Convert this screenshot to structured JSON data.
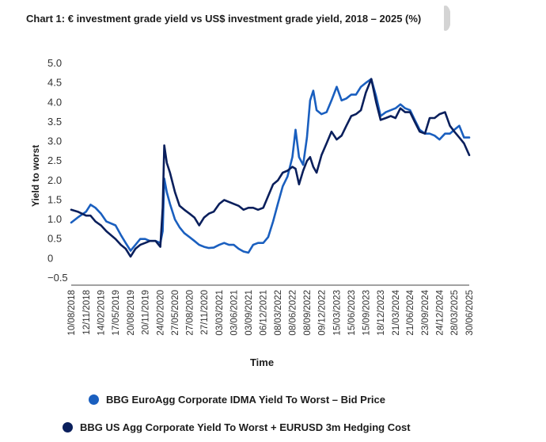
{
  "title": "Chart 1: € investment grade yield vs US$ investment grade yield, 2018 – 2025 (%)",
  "chart_data": {
    "type": "line",
    "title": "Chart 1: € investment grade yield vs US$ investment grade yield, 2018 – 2025 (%)",
    "xlabel": "Time",
    "ylabel": "Yield to worst",
    "ylim": [
      -0.5,
      5.0
    ],
    "yticks": [
      -0.5,
      0,
      0.5,
      1.0,
      1.5,
      2.0,
      2.5,
      3.0,
      3.5,
      4.0,
      4.5,
      5.0
    ],
    "ytick_labels": [
      "−0.5",
      "0",
      "0.5",
      "1.0",
      "1.5",
      "2.0",
      "2.5",
      "3.0",
      "3.5",
      "4.0",
      "4.5",
      "5.0"
    ],
    "xlim": [
      "2018-08-10",
      "2025-06-30"
    ],
    "xticks": [
      "2018-08-10",
      "2018-11-12",
      "2019-02-14",
      "2019-05-17",
      "2019-08-20",
      "2019-11-20",
      "2020-02-24",
      "2020-05-27",
      "2020-08-27",
      "2020-11-27",
      "2021-03-03",
      "2021-06-03",
      "2021-09-03",
      "2021-12-06",
      "2022-03-08",
      "2022-06-08",
      "2022-09-08",
      "2022-12-09",
      "2023-03-15",
      "2023-06-15",
      "2023-09-15",
      "2023-12-18",
      "2024-03-21",
      "2024-06-21",
      "2024-09-23",
      "2024-12-24",
      "2025-03-28",
      "2025-06-30"
    ],
    "xtick_labels": [
      "10/08/2018",
      "12/11/2018",
      "14/02/2019",
      "17/05/2019",
      "20/08/2019",
      "20/11/2019",
      "24/02/2020",
      "27/05/2020",
      "27/08/2020",
      "27/11/2020",
      "03/03/2021",
      "03/06/2021",
      "03/09/2021",
      "06/12/2021",
      "08/03/2022",
      "08/06/2022",
      "08/09/2022",
      "09/12/2022",
      "15/03/2023",
      "15/06/2023",
      "15/09/2023",
      "18/12/2023",
      "21/03/2024",
      "21/06/2024",
      "23/09/2024",
      "24/12/2024",
      "28/03/2025",
      "30/06/2025"
    ],
    "grid": false,
    "legend_position": "bottom",
    "series": [
      {
        "name": "BBG EuroAgg Corporate IDMA Yield To Worst – Bid Price",
        "color": "#1a5fbf",
        "points": [
          [
            "2018-08-10",
            0.92
          ],
          [
            "2018-09-20",
            1.05
          ],
          [
            "2018-11-12",
            1.2
          ],
          [
            "2018-12-10",
            1.38
          ],
          [
            "2019-01-10",
            1.3
          ],
          [
            "2019-02-14",
            1.15
          ],
          [
            "2019-03-20",
            0.95
          ],
          [
            "2019-05-17",
            0.85
          ],
          [
            "2019-06-20",
            0.6
          ],
          [
            "2019-07-20",
            0.4
          ],
          [
            "2019-08-20",
            0.2
          ],
          [
            "2019-09-20",
            0.35
          ],
          [
            "2019-10-20",
            0.5
          ],
          [
            "2019-11-20",
            0.5
          ],
          [
            "2019-12-20",
            0.45
          ],
          [
            "2020-01-25",
            0.45
          ],
          [
            "2020-02-24",
            0.4
          ],
          [
            "2020-03-10",
            0.7
          ],
          [
            "2020-03-20",
            2.05
          ],
          [
            "2020-04-05",
            1.7
          ],
          [
            "2020-04-25",
            1.4
          ],
          [
            "2020-05-27",
            1.0
          ],
          [
            "2020-06-25",
            0.8
          ],
          [
            "2020-07-25",
            0.65
          ],
          [
            "2020-08-27",
            0.55
          ],
          [
            "2020-09-27",
            0.45
          ],
          [
            "2020-10-27",
            0.35
          ],
          [
            "2020-11-27",
            0.3
          ],
          [
            "2020-12-27",
            0.27
          ],
          [
            "2021-01-27",
            0.28
          ],
          [
            "2021-03-03",
            0.35
          ],
          [
            "2021-04-03",
            0.4
          ],
          [
            "2021-05-03",
            0.35
          ],
          [
            "2021-06-03",
            0.35
          ],
          [
            "2021-07-03",
            0.25
          ],
          [
            "2021-08-03",
            0.18
          ],
          [
            "2021-09-03",
            0.15
          ],
          [
            "2021-10-03",
            0.35
          ],
          [
            "2021-11-03",
            0.4
          ],
          [
            "2021-12-06",
            0.4
          ],
          [
            "2022-01-06",
            0.55
          ],
          [
            "2022-02-06",
            0.95
          ],
          [
            "2022-03-08",
            1.4
          ],
          [
            "2022-04-08",
            1.85
          ],
          [
            "2022-05-08",
            2.1
          ],
          [
            "2022-06-08",
            2.6
          ],
          [
            "2022-06-28",
            3.3
          ],
          [
            "2022-07-20",
            2.6
          ],
          [
            "2022-08-15",
            2.4
          ],
          [
            "2022-09-08",
            3.1
          ],
          [
            "2022-09-28",
            4.05
          ],
          [
            "2022-10-18",
            4.3
          ],
          [
            "2022-11-08",
            3.8
          ],
          [
            "2022-12-09",
            3.7
          ],
          [
            "2023-01-10",
            3.75
          ],
          [
            "2023-02-10",
            4.05
          ],
          [
            "2023-03-15",
            4.4
          ],
          [
            "2023-04-15",
            4.05
          ],
          [
            "2023-05-15",
            4.1
          ],
          [
            "2023-06-15",
            4.2
          ],
          [
            "2023-07-15",
            4.2
          ],
          [
            "2023-08-15",
            4.4
          ],
          [
            "2023-09-15",
            4.5
          ],
          [
            "2023-10-20",
            4.6
          ],
          [
            "2023-11-20",
            4.15
          ],
          [
            "2023-12-18",
            3.65
          ],
          [
            "2024-01-20",
            3.75
          ],
          [
            "2024-02-20",
            3.8
          ],
          [
            "2024-03-21",
            3.85
          ],
          [
            "2024-04-21",
            3.95
          ],
          [
            "2024-05-21",
            3.85
          ],
          [
            "2024-06-21",
            3.8
          ],
          [
            "2024-07-21",
            3.55
          ],
          [
            "2024-08-21",
            3.3
          ],
          [
            "2024-09-23",
            3.2
          ],
          [
            "2024-10-23",
            3.2
          ],
          [
            "2024-11-23",
            3.15
          ],
          [
            "2024-12-24",
            3.05
          ],
          [
            "2025-01-28",
            3.2
          ],
          [
            "2025-02-28",
            3.2
          ],
          [
            "2025-03-28",
            3.3
          ],
          [
            "2025-04-28",
            3.4
          ],
          [
            "2025-05-28",
            3.1
          ],
          [
            "2025-06-30",
            3.1
          ]
        ]
      },
      {
        "name": "BBG US Agg Corporate Yield To Worst + EURUSD 3m Hedging Cost",
        "color": "#0a1f5c",
        "points": [
          [
            "2018-08-10",
            1.25
          ],
          [
            "2018-09-20",
            1.2
          ],
          [
            "2018-11-12",
            1.1
          ],
          [
            "2018-12-10",
            1.1
          ],
          [
            "2019-01-10",
            0.95
          ],
          [
            "2019-02-14",
            0.85
          ],
          [
            "2019-03-20",
            0.7
          ],
          [
            "2019-05-17",
            0.5
          ],
          [
            "2019-06-20",
            0.35
          ],
          [
            "2019-07-20",
            0.25
          ],
          [
            "2019-08-20",
            0.05
          ],
          [
            "2019-09-20",
            0.25
          ],
          [
            "2019-10-20",
            0.35
          ],
          [
            "2019-11-20",
            0.4
          ],
          [
            "2019-12-20",
            0.45
          ],
          [
            "2020-01-25",
            0.45
          ],
          [
            "2020-02-24",
            0.3
          ],
          [
            "2020-03-10",
            1.3
          ],
          [
            "2020-03-20",
            2.9
          ],
          [
            "2020-04-05",
            2.45
          ],
          [
            "2020-04-25",
            2.2
          ],
          [
            "2020-05-27",
            1.7
          ],
          [
            "2020-06-25",
            1.35
          ],
          [
            "2020-07-25",
            1.25
          ],
          [
            "2020-08-27",
            1.15
          ],
          [
            "2020-09-27",
            1.05
          ],
          [
            "2020-10-27",
            0.85
          ],
          [
            "2020-11-27",
            1.05
          ],
          [
            "2020-12-27",
            1.15
          ],
          [
            "2021-01-27",
            1.2
          ],
          [
            "2021-03-03",
            1.4
          ],
          [
            "2021-04-03",
            1.5
          ],
          [
            "2021-05-03",
            1.45
          ],
          [
            "2021-06-03",
            1.4
          ],
          [
            "2021-07-03",
            1.35
          ],
          [
            "2021-08-03",
            1.25
          ],
          [
            "2021-09-03",
            1.3
          ],
          [
            "2021-10-03",
            1.3
          ],
          [
            "2021-11-03",
            1.25
          ],
          [
            "2021-12-06",
            1.3
          ],
          [
            "2022-01-06",
            1.6
          ],
          [
            "2022-02-06",
            1.9
          ],
          [
            "2022-03-08",
            2.0
          ],
          [
            "2022-04-08",
            2.2
          ],
          [
            "2022-05-08",
            2.25
          ],
          [
            "2022-06-08",
            2.35
          ],
          [
            "2022-06-28",
            2.3
          ],
          [
            "2022-07-20",
            1.9
          ],
          [
            "2022-08-15",
            2.25
          ],
          [
            "2022-09-08",
            2.5
          ],
          [
            "2022-09-28",
            2.6
          ],
          [
            "2022-10-18",
            2.35
          ],
          [
            "2022-11-08",
            2.2
          ],
          [
            "2022-12-09",
            2.65
          ],
          [
            "2023-01-10",
            2.95
          ],
          [
            "2023-02-10",
            3.25
          ],
          [
            "2023-03-15",
            3.05
          ],
          [
            "2023-04-15",
            3.15
          ],
          [
            "2023-05-15",
            3.4
          ],
          [
            "2023-06-15",
            3.65
          ],
          [
            "2023-07-15",
            3.7
          ],
          [
            "2023-08-15",
            3.8
          ],
          [
            "2023-09-15",
            4.25
          ],
          [
            "2023-10-20",
            4.6
          ],
          [
            "2023-11-20",
            4.0
          ],
          [
            "2023-12-18",
            3.55
          ],
          [
            "2024-01-20",
            3.6
          ],
          [
            "2024-02-20",
            3.65
          ],
          [
            "2024-03-21",
            3.6
          ],
          [
            "2024-04-21",
            3.85
          ],
          [
            "2024-05-21",
            3.75
          ],
          [
            "2024-06-21",
            3.75
          ],
          [
            "2024-07-21",
            3.5
          ],
          [
            "2024-08-21",
            3.25
          ],
          [
            "2024-09-23",
            3.2
          ],
          [
            "2024-10-23",
            3.6
          ],
          [
            "2024-11-23",
            3.6
          ],
          [
            "2024-12-24",
            3.7
          ],
          [
            "2025-01-28",
            3.75
          ],
          [
            "2025-02-28",
            3.4
          ],
          [
            "2025-03-28",
            3.25
          ],
          [
            "2025-04-28",
            3.1
          ],
          [
            "2025-05-28",
            2.95
          ],
          [
            "2025-06-30",
            2.65
          ]
        ]
      }
    ]
  }
}
